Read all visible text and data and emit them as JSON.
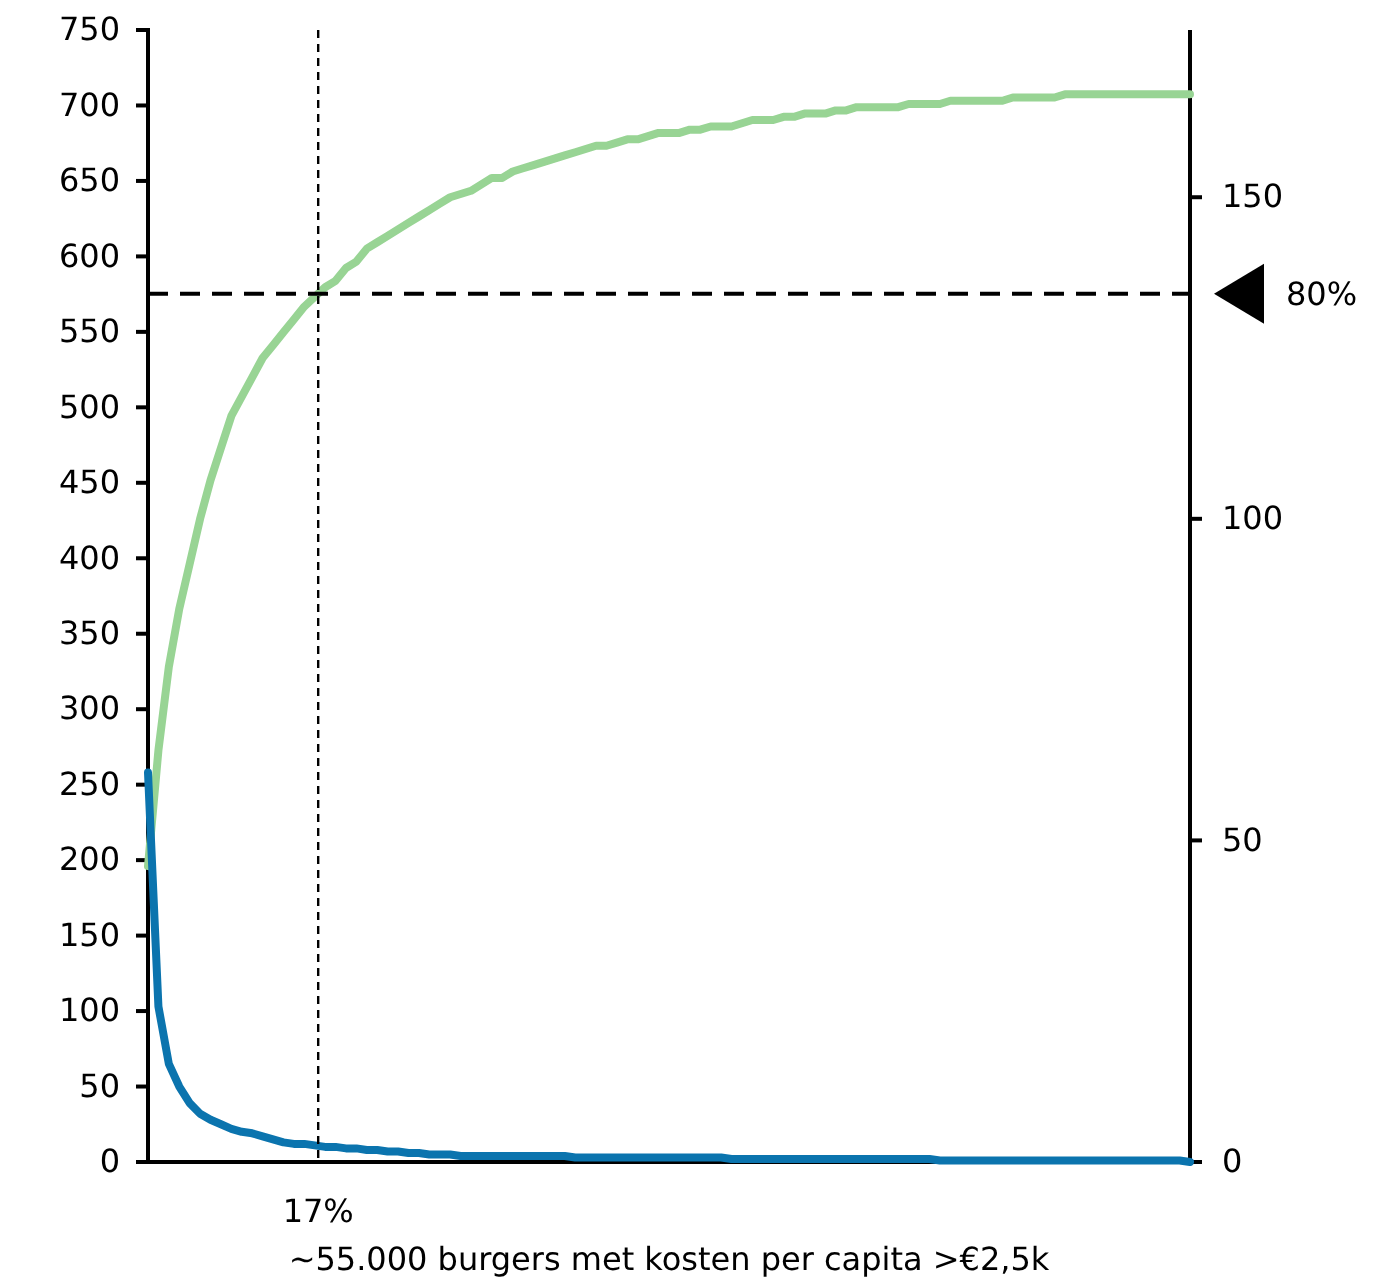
{
  "chart_data": {
    "type": "line",
    "xlabel": "~55.000 burgers met kosten per capita >€2,5k",
    "categories": [
      null,
      null,
      null,
      null,
      null,
      null,
      null,
      null,
      null,
      null,
      null,
      null,
      null,
      null,
      null,
      null,
      null,
      null,
      null,
      null,
      null,
      null,
      null,
      null,
      null,
      null,
      null,
      null,
      null,
      null,
      null,
      null,
      null,
      null,
      null,
      null,
      null,
      null,
      null,
      null,
      null,
      null,
      null,
      null,
      null,
      null,
      null,
      null,
      null,
      null,
      null,
      null,
      null,
      null,
      null,
      null,
      null,
      null,
      null,
      null,
      null,
      null,
      null,
      null,
      null,
      null,
      null,
      null,
      null,
      null,
      null,
      null,
      null,
      null,
      null,
      null,
      null,
      null,
      null,
      null,
      null,
      null,
      null,
      null,
      null,
      null,
      null,
      null,
      null,
      null,
      null,
      null,
      null,
      null,
      null,
      null,
      null,
      null,
      null,
      null,
      null
    ],
    "ylim": [
      0,
      750
    ],
    "yticks": [
      0,
      50,
      100,
      150,
      200,
      250,
      300,
      350,
      400,
      450,
      500,
      550,
      600,
      650,
      700,
      750
    ],
    "y2lim": [
      0,
      176
    ],
    "y2ticks": [
      0,
      50,
      100,
      150
    ],
    "tick_labels": "y",
    "series": [
      {
        "color": "#98d494",
        "axis": "y2",
        "values": [
          46,
          64,
          77,
          86,
          93,
          100,
          106,
          111,
          116,
          119,
          122,
          125,
          127,
          129,
          131,
          133,
          134.5,
          136,
          137,
          139,
          140,
          142,
          143,
          144,
          145,
          146,
          147,
          148,
          149,
          150,
          150.5,
          151,
          152,
          153,
          153,
          154,
          154.5,
          155,
          155.5,
          156,
          156.5,
          157,
          157.5,
          158,
          158,
          158.5,
          159,
          159,
          159.5,
          160,
          160,
          160,
          160.5,
          160.5,
          161,
          161,
          161,
          161.5,
          162,
          162,
          162,
          162.5,
          162.5,
          163,
          163,
          163,
          163.5,
          163.5,
          164,
          164,
          164,
          164,
          164,
          164.5,
          164.5,
          164.5,
          164.5,
          165,
          165,
          165,
          165,
          165,
          165,
          165.5,
          165.5,
          165.5,
          165.5,
          165.5,
          166,
          166,
          166,
          166,
          166,
          166,
          166,
          166,
          166,
          166,
          166,
          166,
          166
        ]
      },
      {
        "color": "#0b74ae",
        "axis": "y",
        "values": [
          258,
          103,
          65,
          50,
          39,
          32,
          28,
          25,
          22,
          20,
          19,
          17,
          15,
          13,
          12,
          12,
          11,
          10,
          10,
          9,
          9,
          8,
          8,
          7,
          7,
          6,
          6,
          5,
          5,
          5,
          4,
          4,
          4,
          4,
          4,
          4,
          4,
          4,
          4,
          4,
          4,
          3,
          3,
          3,
          3,
          3,
          3,
          3,
          3,
          3,
          3,
          3,
          3,
          3,
          3,
          3,
          2,
          2,
          2,
          2,
          2,
          2,
          2,
          2,
          2,
          2,
          2,
          2,
          2,
          2,
          2,
          2,
          2,
          2,
          2,
          2,
          1,
          1,
          1,
          1,
          1,
          1,
          1,
          1,
          1,
          1,
          1,
          1,
          1,
          1,
          1,
          1,
          1,
          1,
          1,
          1,
          1,
          1,
          1,
          1,
          0
        ]
      }
    ],
    "ref_lines": [
      {
        "axis": "y2",
        "value": 135,
        "line_style": "dashed",
        "color": "#000000"
      }
    ],
    "annotations": [
      "80%",
      "17%"
    ]
  }
}
